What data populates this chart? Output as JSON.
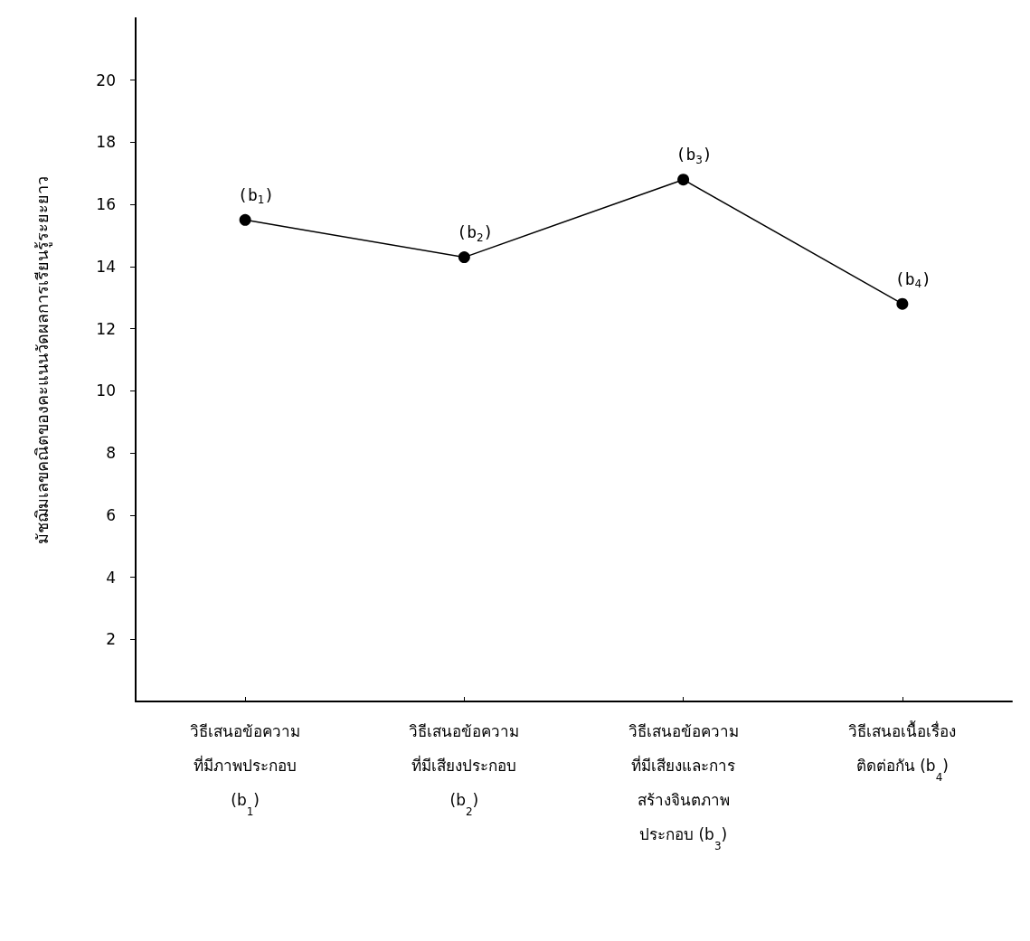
{
  "chart_data": {
    "type": "line",
    "ylabel": "มัชฌิมเลขคณิตของคะแนนวัดผลการเรียนรู้ระยะยาว",
    "categories": [
      "วิธีเสนอข้อความ\nที่มีภาพประกอบ\n(b$_{1}$)",
      "วิธีเสนอข้อความ\nที่มีเสียงประกอบ\n(b$_{2}$)",
      "วิธีเสนอข้อความ\nที่มีเสียงและการ\nสร้างจินตภาพ\nประกอบ (b$_{3}$)",
      "วิธีเสนอเนื้อเรื่อง\nติดต่อกัน (b$_{4}$)"
    ],
    "series": [
      {
        "color": "#000000",
        "values": [
          15.5,
          14.3,
          16.8,
          12.8
        ]
      }
    ],
    "ylim": [
      0,
      22
    ],
    "yticks": [
      2,
      4,
      6,
      8,
      10,
      12,
      14,
      16,
      18,
      20
    ],
    "grid": false,
    "marker": "circle",
    "line_style": "solid",
    "annotations": [
      {
        "text": "(b$_{1}$)",
        "x": "วิธีเสนอข้อความ\nที่มีภาพประกอบ\n(b$_{1}$)",
        "y": 15.5
      },
      {
        "text": "(b$_{2}$)",
        "x": "วิธีเสนอข้อความ\nที่มีเสียงประกอบ\n(b$_{2}$)",
        "y": 14.3
      },
      {
        "text": "(b$_{3}$)",
        "x": "วิธีเสนอข้อความ\nที่มีเสียงและการ\nสร้างจินตภาพ\nประกอบ (b$_{3}$)",
        "y": 16.8
      },
      {
        "text": "(b$_{4}$)",
        "x": "วิธีเสนอเนื้อเรื่อง\nติดต่อกัน (b$_{4}$)",
        "y": 12.8
      }
    ]
  }
}
